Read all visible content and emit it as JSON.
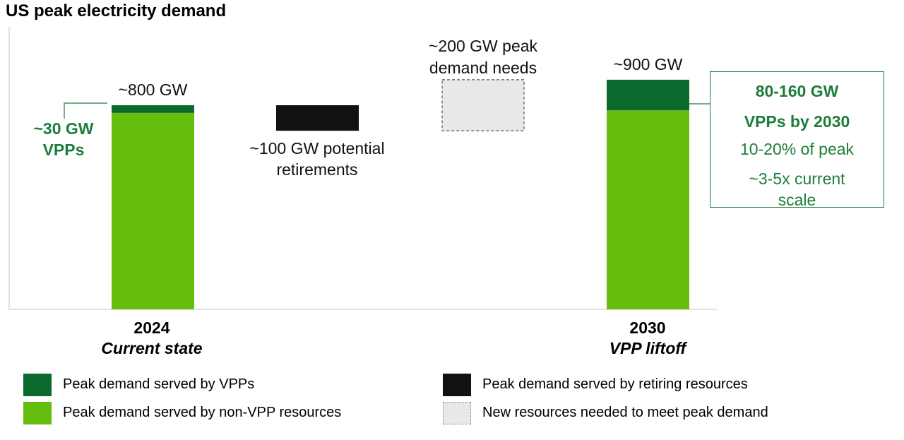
{
  "chart_data": {
    "type": "bar",
    "title": "US peak electricity demand",
    "categories": [
      {
        "year": "2024",
        "label": "Current state"
      },
      {
        "year": "2030",
        "label": "VPP liftoff"
      }
    ],
    "series": [
      {
        "name": "Peak demand served by VPPs",
        "values": [
          30,
          120
        ],
        "color": "#0b6b2e"
      },
      {
        "name": "Peak demand served by non-VPP resources",
        "values": [
          770,
          780
        ],
        "color": "#65bd0e"
      }
    ],
    "totals": [
      "~800 GW",
      "~900 GW"
    ],
    "bridge": [
      {
        "name": "Peak demand served by retiring resources",
        "value": 100,
        "color": "#111111",
        "label": "~100 GW potential retirements",
        "label_lines": [
          "~100 GW potential",
          "retirements"
        ]
      },
      {
        "name": "New resources needed to meet peak demand",
        "value": 200,
        "color": "#e8e8e8",
        "label": "~200 GW peak demand needs",
        "label_lines": [
          "~200 GW peak",
          "demand needs"
        ]
      }
    ],
    "annotations": {
      "vpp_2024": [
        "~30 GW",
        "VPPs"
      ],
      "vpp_2030": {
        "heading": [
          "80-160 GW",
          "VPPs by 2030"
        ],
        "details": [
          "10-20% of peak",
          "~3-5x current",
          "scale"
        ]
      }
    },
    "xlabel": "",
    "ylabel": "",
    "unit": "GW",
    "ylim": [
      0,
      1000
    ],
    "grid": false,
    "legend_position": "bottom"
  },
  "legend": [
    {
      "label": "Peak demand served by VPPs",
      "color": "#0b6b2e",
      "style": "solid"
    },
    {
      "label": "Peak demand served by non-VPP resources",
      "color": "#65bd0e",
      "style": "solid"
    },
    {
      "label": "Peak demand served by retiring resources",
      "color": "#111111",
      "style": "solid"
    },
    {
      "label": "New resources needed to meet peak demand",
      "color": "#e8e8e8",
      "style": "dashed"
    }
  ]
}
